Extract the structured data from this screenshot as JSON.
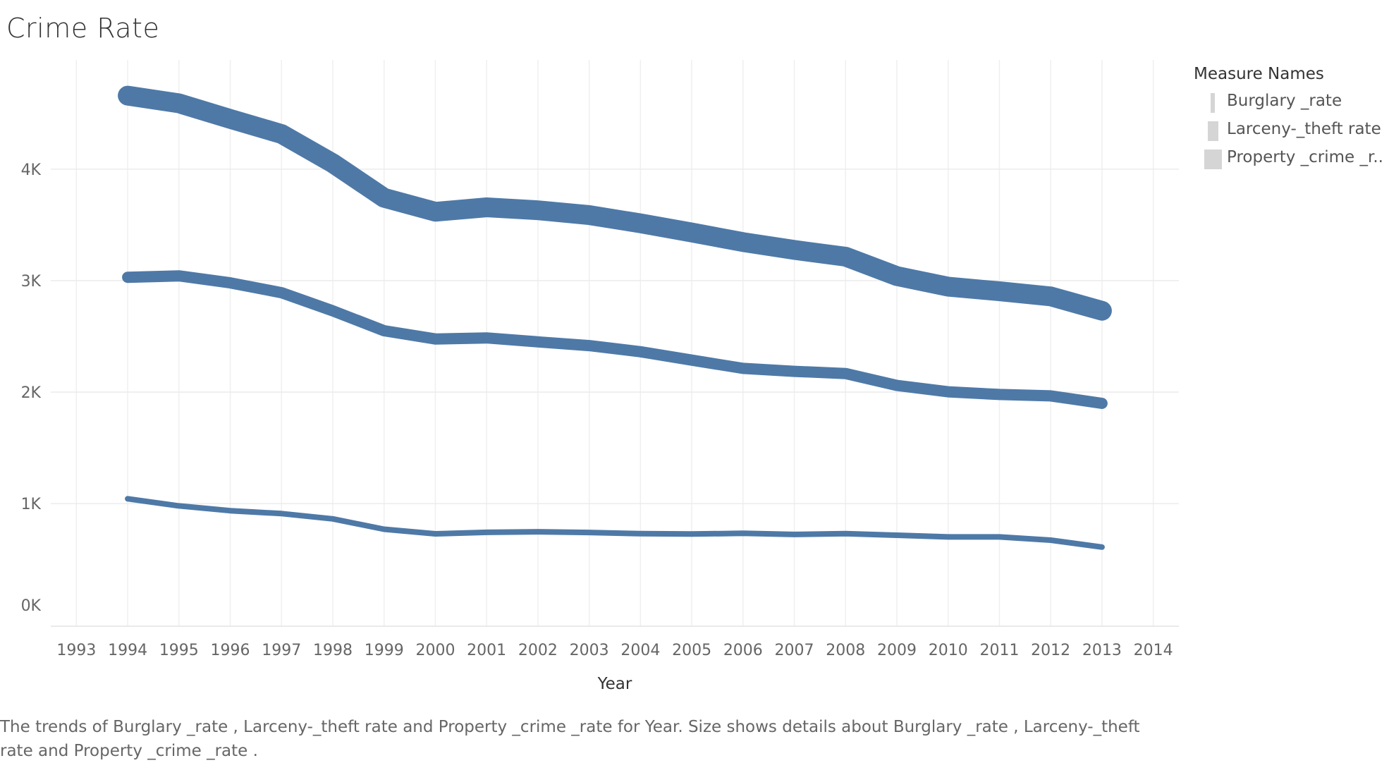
{
  "chart_data": {
    "type": "line",
    "title": "Crime Rate",
    "xlabel": "Year",
    "ylabel": "",
    "x_ticks": [
      "1993",
      "1994",
      "1995",
      "1996",
      "1997",
      "1998",
      "1999",
      "2000",
      "2001",
      "2002",
      "2003",
      "2004",
      "2005",
      "2006",
      "2007",
      "2008",
      "2009",
      "2010",
      "2011",
      "2012",
      "2013",
      "2014"
    ],
    "y_ticks": [
      "0K",
      "1K",
      "2K",
      "3K",
      "4K"
    ],
    "x_range": [
      1992.5,
      2014.5
    ],
    "ylim": [
      -100,
      4980
    ],
    "grid": true,
    "legend_title": "Measure Names",
    "legend_position": "top-right",
    "size_encoding": true,
    "line_color": "#4e79a7",
    "x": [
      1994,
      1995,
      1996,
      1997,
      1998,
      1999,
      2000,
      2001,
      2002,
      2003,
      2004,
      2005,
      2006,
      2007,
      2008,
      2009,
      2010,
      2011,
      2012,
      2013
    ],
    "series": [
      {
        "name": "Burglary _rate",
        "values": [
          1043,
          979,
          936,
          910,
          863,
          770,
          729,
          742,
          747,
          741,
          730,
          727,
          733,
          723,
          730,
          716,
          701,
          701,
          672,
          610
        ]
      },
      {
        "name": "Larceny-_theft rate",
        "values": [
          3030,
          3043,
          2980,
          2892,
          2729,
          2551,
          2477,
          2486,
          2451,
          2417,
          2362,
          2287,
          2213,
          2186,
          2167,
          2060,
          2003,
          1979,
          1966,
          1899
        ]
      },
      {
        "name": "Property _crime _r..",
        "values": [
          4660,
          4591,
          4451,
          4316,
          4053,
          3743,
          3618,
          3658,
          3631,
          3588,
          3514,
          3432,
          3346,
          3276,
          3215,
          3041,
          2946,
          2905,
          2859,
          2730
        ]
      }
    ]
  },
  "caption": {
    "line1": "The trends of Burglary _rate , Larceny-_theft rate  and Property _crime _rate  for Year.  Size shows details about Burglary _rate , Larceny-_theft",
    "line2": "rate  and Property _crime _rate ."
  }
}
